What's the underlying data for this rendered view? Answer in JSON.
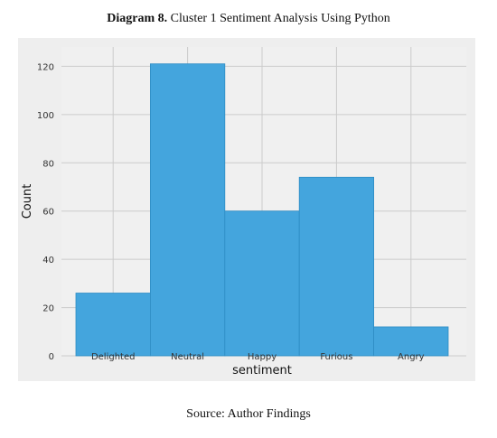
{
  "caption": {
    "label": "Diagram 8.",
    "title": "Cluster 1 Sentiment Analysis Using Python",
    "source": "Source: Author Findings"
  },
  "chart_data": {
    "type": "bar",
    "categories": [
      "Delighted",
      "Neutral",
      "Happy",
      "Furious",
      "Angry"
    ],
    "values": [
      26,
      121,
      60,
      74,
      12
    ],
    "xlabel": "sentiment",
    "ylabel": "Count",
    "ylim": [
      0,
      128
    ],
    "yticks": [
      0,
      20,
      40,
      60,
      80,
      100,
      120
    ],
    "grid": true,
    "colors": {
      "bar": "#44a5dd",
      "bar_edge": "#2e8cc4",
      "plot_background": "#f0f0f0",
      "figure_background": "#eeeeee",
      "grid": "#cbcbcb"
    }
  }
}
